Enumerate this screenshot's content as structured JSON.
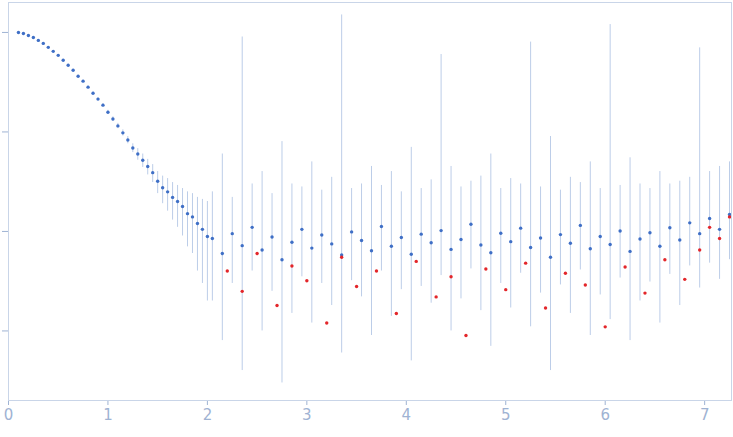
{
  "chart_data": {
    "type": "scatter",
    "log": "y",
    "tick_labels": "x",
    "grid": false,
    "xlim": [
      0,
      7.27
    ],
    "xticks": [
      0,
      1,
      2,
      3,
      4,
      5,
      6,
      7
    ],
    "ylim": [
      0.0002,
      2
    ],
    "yticks": [
      0.001,
      0.01,
      0.1,
      1
    ],
    "error_color": "#bccde8",
    "series": [
      {
        "color": "#3f6fc6",
        "marker": "dot",
        "x": [
          0.1,
          0.15,
          0.2,
          0.25,
          0.3,
          0.35,
          0.4,
          0.45,
          0.5,
          0.55,
          0.6,
          0.65,
          0.7,
          0.75,
          0.8,
          0.85,
          0.9,
          0.95,
          1.0,
          1.05,
          1.1,
          1.15,
          1.2,
          1.25,
          1.3,
          1.35,
          1.4,
          1.45,
          1.5,
          1.55,
          1.6,
          1.65,
          1.7,
          1.75,
          1.8,
          1.85,
          1.9,
          1.95,
          2.0,
          2.05,
          2.15,
          2.25,
          2.35,
          2.45,
          2.55,
          2.65,
          2.75,
          2.85,
          2.95,
          3.05,
          3.15,
          3.25,
          3.35,
          3.45,
          3.55,
          3.65,
          3.75,
          3.85,
          3.95,
          4.05,
          4.15,
          4.25,
          4.35,
          4.45,
          4.55,
          4.65,
          4.75,
          4.85,
          4.95,
          5.05,
          5.15,
          5.25,
          5.35,
          5.45,
          5.55,
          5.65,
          5.75,
          5.85,
          5.95,
          6.05,
          6.15,
          6.25,
          6.35,
          6.45,
          6.55,
          6.65,
          6.75,
          6.85,
          6.95,
          7.05,
          7.15,
          7.25
        ],
        "values": [
          1.0,
          0.977,
          0.933,
          0.891,
          0.832,
          0.776,
          0.708,
          0.646,
          0.589,
          0.525,
          0.468,
          0.417,
          0.363,
          0.324,
          0.282,
          0.245,
          0.214,
          0.186,
          0.158,
          0.135,
          0.115,
          0.098,
          0.083,
          0.069,
          0.06,
          0.052,
          0.045,
          0.039,
          0.032,
          0.0275,
          0.025,
          0.022,
          0.02,
          0.0178,
          0.0151,
          0.014,
          0.012,
          0.0105,
          0.0089,
          0.0085,
          0.006,
          0.0095,
          0.0072,
          0.011,
          0.0065,
          0.0088,
          0.0052,
          0.0078,
          0.0105,
          0.0068,
          0.0092,
          0.0075,
          0.0058,
          0.0099,
          0.0081,
          0.0064,
          0.0112,
          0.0071,
          0.0087,
          0.0059,
          0.0094,
          0.0077,
          0.0102,
          0.0066,
          0.0083,
          0.0118,
          0.0073,
          0.0061,
          0.0096,
          0.0079,
          0.0108,
          0.0069,
          0.0086,
          0.0055,
          0.0093,
          0.0076,
          0.0115,
          0.0067,
          0.0089,
          0.0074,
          0.0101,
          0.0063,
          0.0084,
          0.0097,
          0.0071,
          0.0109,
          0.0082,
          0.0122,
          0.0095,
          0.0135,
          0.0105,
          0.0148
        ],
        "y_low": [
          0.98,
          0.957,
          0.914,
          0.873,
          0.815,
          0.76,
          0.694,
          0.633,
          0.577,
          0.514,
          0.458,
          0.408,
          0.355,
          0.316,
          0.275,
          0.238,
          0.207,
          0.179,
          0.151,
          0.128,
          0.108,
          0.091,
          0.076,
          0.062,
          0.052,
          0.044,
          0.037,
          0.031,
          0.024,
          0.019,
          0.016,
          0.013,
          0.011,
          0.009,
          0.007,
          0.006,
          0.004,
          0.003,
          0.002,
          0.002,
          0.0008,
          0.003,
          0.0004,
          0.004,
          0.001,
          0.0025,
          0.0003,
          0.0015,
          0.0035,
          0.0012,
          0.003,
          0.0018,
          0.0006,
          0.0032,
          0.0022,
          0.0009,
          0.004,
          0.0014,
          0.0026,
          0.0005,
          0.0028,
          0.0019,
          0.0036,
          0.001,
          0.0021,
          0.0042,
          0.0016,
          0.0007,
          0.003,
          0.0017,
          0.0038,
          0.0011,
          0.0024,
          0.0004,
          0.0029,
          0.0015,
          0.0041,
          0.0009,
          0.0023,
          0.0013,
          0.0034,
          0.0008,
          0.002,
          0.0031,
          0.0012,
          0.0037,
          0.0018,
          0.0045,
          0.0027,
          0.0048,
          0.0033,
          0.0052
        ],
        "y_high": [
          1.02,
          0.997,
          0.952,
          0.909,
          0.849,
          0.792,
          0.722,
          0.659,
          0.601,
          0.536,
          0.478,
          0.426,
          0.371,
          0.332,
          0.289,
          0.252,
          0.221,
          0.193,
          0.165,
          0.142,
          0.122,
          0.105,
          0.09,
          0.076,
          0.068,
          0.06,
          0.053,
          0.047,
          0.04,
          0.036,
          0.034,
          0.031,
          0.029,
          0.027,
          0.025,
          0.024,
          0.022,
          0.021,
          0.02,
          0.025,
          0.06,
          0.022,
          0.9,
          0.03,
          0.04,
          0.024,
          0.08,
          0.03,
          0.028,
          0.05,
          0.026,
          0.035,
          1.5,
          0.027,
          0.03,
          0.045,
          0.029,
          0.04,
          0.025,
          0.07,
          0.027,
          0.033,
          0.6,
          0.045,
          0.028,
          0.032,
          0.036,
          0.06,
          0.027,
          0.034,
          0.03,
          0.8,
          0.028,
          0.09,
          0.026,
          0.035,
          0.031,
          0.05,
          0.027,
          1.2,
          0.029,
          0.055,
          0.03,
          0.027,
          0.04,
          0.03,
          0.032,
          0.035,
          0.7,
          0.04,
          0.045,
          0.05
        ]
      },
      {
        "color": "#e3262a",
        "marker": "dot",
        "x": [
          2.2,
          2.35,
          2.5,
          2.7,
          2.85,
          3.0,
          3.2,
          3.35,
          3.5,
          3.7,
          3.9,
          4.1,
          4.3,
          4.45,
          4.6,
          4.8,
          5.0,
          5.2,
          5.4,
          5.6,
          5.8,
          6.0,
          6.2,
          6.4,
          6.6,
          6.8,
          6.95,
          7.05,
          7.15,
          7.25
        ],
        "values": [
          0.004,
          0.0025,
          0.006,
          0.0018,
          0.0045,
          0.0032,
          0.0012,
          0.0055,
          0.0028,
          0.004,
          0.0015,
          0.005,
          0.0022,
          0.0035,
          0.0009,
          0.0042,
          0.0026,
          0.0048,
          0.0017,
          0.0038,
          0.0029,
          0.0011,
          0.0044,
          0.0024,
          0.0052,
          0.0033,
          0.0065,
          0.011,
          0.0085,
          0.014
        ]
      }
    ]
  }
}
